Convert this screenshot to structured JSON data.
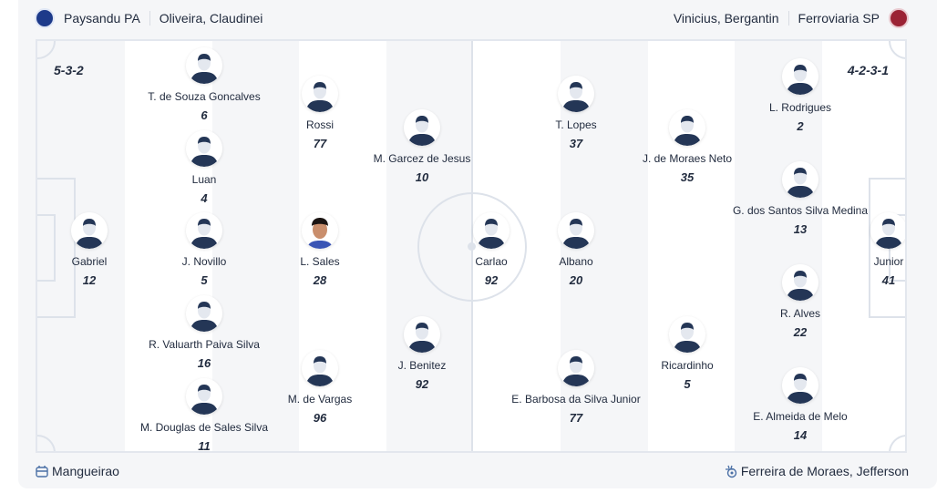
{
  "home": {
    "team": "Paysandu PA",
    "coach": "Oliveira, Claudinei",
    "formation": "5-3-2",
    "crest_color": "#1d3a8a",
    "players": [
      {
        "name": "Gabriel",
        "number": "12"
      },
      {
        "name": "T. de Souza Goncalves",
        "number": "6"
      },
      {
        "name": "Luan",
        "number": "4"
      },
      {
        "name": "J. Novillo",
        "number": "5"
      },
      {
        "name": "R. Valuarth Paiva Silva",
        "number": "16"
      },
      {
        "name": "M. Douglas de Sales Silva",
        "number": "11"
      },
      {
        "name": "Rossi",
        "number": "77"
      },
      {
        "name": "L. Sales",
        "number": "28",
        "photo": true
      },
      {
        "name": "M. de Vargas",
        "number": "96"
      },
      {
        "name": "M. Garcez de Jesus",
        "number": "10"
      },
      {
        "name": "J. Benitez",
        "number": "92"
      }
    ]
  },
  "away": {
    "team": "Ferroviaria SP",
    "coach": "Vinicius, Bergantin",
    "formation": "4-2-3-1",
    "crest_color": "#9b2335",
    "players": [
      {
        "name": "Carlao",
        "number": "92"
      },
      {
        "name": "T. Lopes",
        "number": "37"
      },
      {
        "name": "Albano",
        "number": "20"
      },
      {
        "name": "E. Barbosa da Silva Junior",
        "number": "77"
      },
      {
        "name": "J. de Moraes Neto",
        "number": "35"
      },
      {
        "name": "Ricardinho",
        "number": "5"
      },
      {
        "name": "L. Rodrigues",
        "number": "2"
      },
      {
        "name": "G. dos Santos Silva Medina",
        "number": "13"
      },
      {
        "name": "R. Alves",
        "number": "22"
      },
      {
        "name": "E. Almeida de Melo",
        "number": "14"
      },
      {
        "name": "Junior",
        "number": "41"
      }
    ]
  },
  "footer": {
    "stadium": "Mangueirao",
    "referee": "Ferreira de Moraes, Jefferson",
    "stadium_icon": "stadium-icon",
    "referee_icon": "whistle-icon"
  }
}
